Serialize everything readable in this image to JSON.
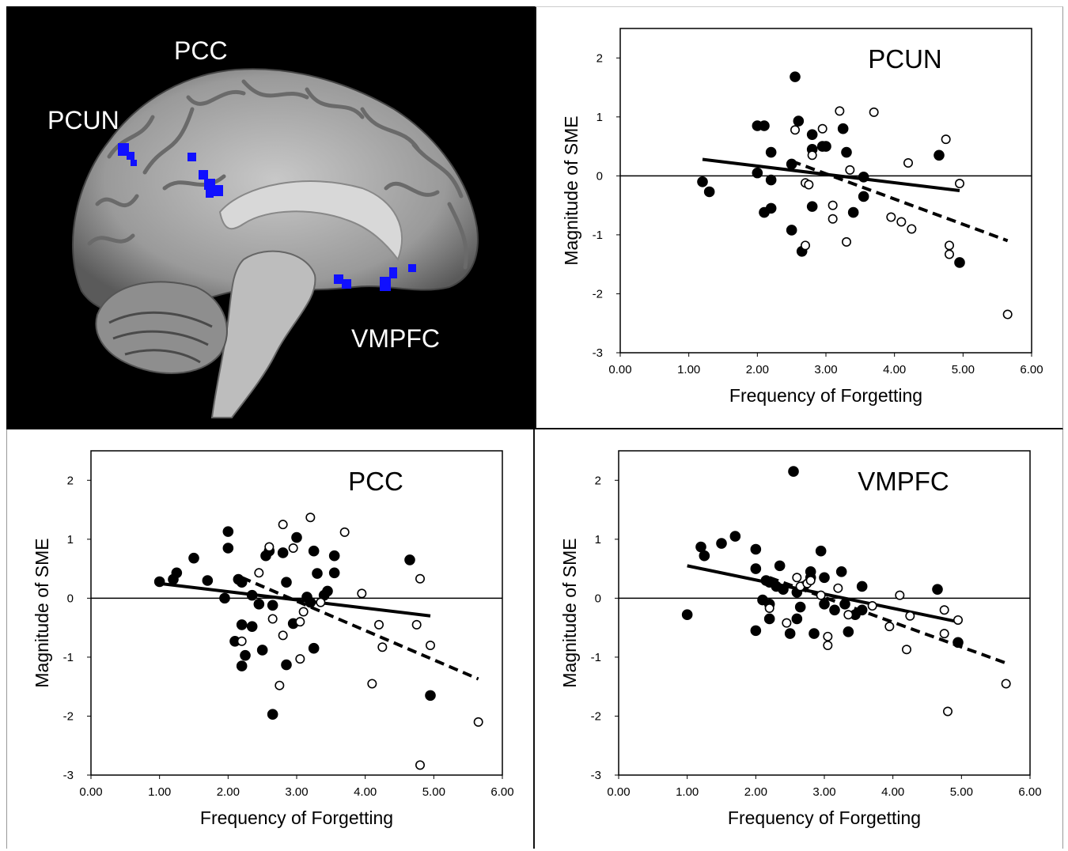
{
  "brain": {
    "labels": {
      "pcc": "PCC",
      "pcun": "PCUN",
      "vmpfc": "VMPFC"
    },
    "colors": {
      "activation": "#1010ff",
      "background": "#000000",
      "label": "#ffffff"
    }
  },
  "chart_data": [
    {
      "type": "scatter",
      "title": "PCUN",
      "xlabel": "Frequency of Forgetting",
      "ylabel": "Magnitude of SME",
      "xlim": [
        0,
        6
      ],
      "ylim": [
        -3,
        2.5
      ],
      "xticks": [
        "0.00",
        "1.00",
        "2.00",
        "3.00",
        "4.00",
        "5.00",
        "6.00"
      ],
      "yticks": [
        "2",
        "1",
        "0",
        "-1",
        "-2",
        "-3"
      ],
      "series": [
        {
          "marker": "filled",
          "points": [
            [
              1.2,
              -0.1
            ],
            [
              1.3,
              -0.27
            ],
            [
              2.0,
              0.85
            ],
            [
              2.1,
              0.85
            ],
            [
              2.2,
              0.4
            ],
            [
              2.2,
              -0.07
            ],
            [
              2.2,
              -0.55
            ],
            [
              2.1,
              -0.62
            ],
            [
              2.0,
              0.05
            ],
            [
              2.5,
              0.2
            ],
            [
              2.55,
              1.68
            ],
            [
              2.6,
              0.93
            ],
            [
              2.8,
              0.7
            ],
            [
              2.8,
              0.45
            ],
            [
              2.95,
              0.5
            ],
            [
              3.0,
              0.5
            ],
            [
              3.25,
              0.8
            ],
            [
              3.3,
              0.4
            ],
            [
              3.55,
              -0.02
            ],
            [
              3.55,
              -0.35
            ],
            [
              3.4,
              -0.62
            ],
            [
              2.8,
              -0.52
            ],
            [
              2.5,
              -0.92
            ],
            [
              2.65,
              -1.28
            ],
            [
              4.65,
              0.35
            ],
            [
              4.95,
              -1.47
            ]
          ]
        },
        {
          "marker": "open",
          "points": [
            [
              2.55,
              0.78
            ],
            [
              2.7,
              -0.12
            ],
            [
              2.75,
              -0.15
            ],
            [
              2.8,
              0.35
            ],
            [
              2.95,
              0.8
            ],
            [
              3.1,
              -0.5
            ],
            [
              3.1,
              -0.73
            ],
            [
              3.2,
              1.1
            ],
            [
              3.3,
              -1.12
            ],
            [
              3.35,
              0.1
            ],
            [
              3.7,
              1.08
            ],
            [
              3.95,
              -0.7
            ],
            [
              4.1,
              -0.78
            ],
            [
              4.2,
              0.22
            ],
            [
              4.25,
              -0.9
            ],
            [
              2.7,
              -1.18
            ],
            [
              4.75,
              0.62
            ],
            [
              4.8,
              -1.18
            ],
            [
              4.8,
              -1.33
            ],
            [
              4.95,
              -0.13
            ],
            [
              5.65,
              -2.35
            ]
          ]
        }
      ],
      "trendlines": [
        {
          "style": "solid",
          "from": [
            1.2,
            0.28
          ],
          "to": [
            4.95,
            -0.25
          ]
        },
        {
          "style": "dashed",
          "from": [
            2.5,
            0.25
          ],
          "to": [
            5.65,
            -1.1
          ]
        }
      ]
    },
    {
      "type": "scatter",
      "title": "PCC",
      "xlabel": "Frequency of Forgetting",
      "ylabel": "Magnitude of SME",
      "xlim": [
        0,
        6
      ],
      "ylim": [
        -3,
        2.5
      ],
      "xticks": [
        "0.00",
        "1.00",
        "2.00",
        "3.00",
        "4.00",
        "5.00",
        "6.00"
      ],
      "yticks": [
        "2",
        "1",
        "0",
        "-1",
        "-2",
        "-3"
      ],
      "series": [
        {
          "marker": "filled",
          "points": [
            [
              1.0,
              0.28
            ],
            [
              1.2,
              0.32
            ],
            [
              1.25,
              0.43
            ],
            [
              1.5,
              0.68
            ],
            [
              1.7,
              0.3
            ],
            [
              2.0,
              1.13
            ],
            [
              2.0,
              0.85
            ],
            [
              2.1,
              -0.73
            ],
            [
              2.15,
              0.32
            ],
            [
              2.2,
              0.27
            ],
            [
              2.2,
              -0.45
            ],
            [
              2.25,
              -0.97
            ],
            [
              2.2,
              -1.15
            ],
            [
              1.95,
              0.0
            ],
            [
              2.35,
              0.05
            ],
            [
              2.35,
              -0.48
            ],
            [
              2.45,
              -0.1
            ],
            [
              2.5,
              -0.88
            ],
            [
              2.55,
              0.72
            ],
            [
              2.6,
              0.8
            ],
            [
              2.65,
              -0.12
            ],
            [
              2.65,
              -1.97
            ],
            [
              2.8,
              0.77
            ],
            [
              2.85,
              0.27
            ],
            [
              2.85,
              -1.13
            ],
            [
              2.95,
              -0.43
            ],
            [
              3.0,
              1.03
            ],
            [
              3.15,
              0.02
            ],
            [
              3.2,
              -0.07
            ],
            [
              3.25,
              0.8
            ],
            [
              3.3,
              0.42
            ],
            [
              3.25,
              -0.85
            ],
            [
              3.4,
              0.05
            ],
            [
              3.45,
              0.12
            ],
            [
              3.55,
              0.72
            ],
            [
              3.55,
              0.43
            ],
            [
              4.65,
              0.65
            ],
            [
              4.95,
              -1.65
            ]
          ]
        },
        {
          "marker": "open",
          "points": [
            [
              2.2,
              -0.73
            ],
            [
              2.45,
              0.43
            ],
            [
              2.6,
              0.87
            ],
            [
              2.65,
              -0.35
            ],
            [
              2.75,
              -1.48
            ],
            [
              2.8,
              -0.63
            ],
            [
              2.8,
              1.25
            ],
            [
              2.95,
              0.85
            ],
            [
              3.05,
              -0.4
            ],
            [
              3.1,
              -0.23
            ],
            [
              3.05,
              -1.03
            ],
            [
              3.2,
              1.37
            ],
            [
              3.35,
              -0.07
            ],
            [
              3.7,
              1.12
            ],
            [
              3.95,
              0.08
            ],
            [
              4.1,
              -1.45
            ],
            [
              4.2,
              -0.45
            ],
            [
              4.25,
              -0.83
            ],
            [
              4.75,
              -0.45
            ],
            [
              4.8,
              0.33
            ],
            [
              4.8,
              -2.83
            ],
            [
              4.95,
              -0.8
            ],
            [
              5.65,
              -2.1
            ]
          ]
        }
      ],
      "trendlines": [
        {
          "style": "solid",
          "from": [
            1.0,
            0.25
          ],
          "to": [
            4.95,
            -0.3
          ]
        },
        {
          "style": "dashed",
          "from": [
            2.2,
            0.35
          ],
          "to": [
            5.65,
            -1.37
          ]
        }
      ]
    },
    {
      "type": "scatter",
      "title": "VMPFC",
      "xlabel": "Frequency of Forgetting",
      "ylabel": "Magnitude of SME",
      "xlim": [
        0,
        6
      ],
      "ylim": [
        -3,
        2.5
      ],
      "xticks": [
        "0.00",
        "1.00",
        "2.00",
        "3.00",
        "4.00",
        "5.00",
        "6.00"
      ],
      "yticks": [
        "2",
        "1",
        "0",
        "-1",
        "-2",
        "-3"
      ],
      "series": [
        {
          "marker": "filled",
          "points": [
            [
              1.0,
              -0.28
            ],
            [
              1.2,
              0.87
            ],
            [
              1.25,
              0.72
            ],
            [
              1.5,
              0.93
            ],
            [
              1.7,
              1.05
            ],
            [
              2.0,
              0.83
            ],
            [
              2.0,
              0.5
            ],
            [
              2.0,
              -0.55
            ],
            [
              2.1,
              -0.03
            ],
            [
              2.15,
              0.3
            ],
            [
              2.2,
              0.27
            ],
            [
              2.2,
              -0.1
            ],
            [
              2.2,
              -0.35
            ],
            [
              2.3,
              0.2
            ],
            [
              2.35,
              0.55
            ],
            [
              2.4,
              0.15
            ],
            [
              2.5,
              -0.6
            ],
            [
              2.55,
              2.15
            ],
            [
              2.6,
              0.1
            ],
            [
              2.6,
              -0.35
            ],
            [
              2.65,
              -0.15
            ],
            [
              2.7,
              0.2
            ],
            [
              2.8,
              0.45
            ],
            [
              2.8,
              0.35
            ],
            [
              2.85,
              -0.6
            ],
            [
              2.95,
              0.8
            ],
            [
              3.0,
              0.35
            ],
            [
              3.0,
              -0.1
            ],
            [
              3.15,
              -0.2
            ],
            [
              3.25,
              0.45
            ],
            [
              3.3,
              -0.1
            ],
            [
              3.35,
              -0.57
            ],
            [
              3.45,
              -0.28
            ],
            [
              3.55,
              0.2
            ],
            [
              3.55,
              -0.2
            ],
            [
              4.65,
              0.15
            ],
            [
              4.95,
              -0.75
            ]
          ]
        },
        {
          "marker": "open",
          "points": [
            [
              2.2,
              -0.17
            ],
            [
              2.45,
              -0.42
            ],
            [
              2.6,
              0.35
            ],
            [
              2.65,
              0.2
            ],
            [
              2.75,
              0.25
            ],
            [
              2.8,
              0.3
            ],
            [
              2.95,
              0.05
            ],
            [
              3.05,
              -0.65
            ],
            [
              3.05,
              -0.8
            ],
            [
              3.2,
              0.17
            ],
            [
              3.35,
              -0.28
            ],
            [
              3.7,
              -0.13
            ],
            [
              3.95,
              -0.48
            ],
            [
              4.1,
              0.05
            ],
            [
              4.2,
              -0.87
            ],
            [
              4.25,
              -0.3
            ],
            [
              4.75,
              -0.2
            ],
            [
              4.75,
              -0.6
            ],
            [
              4.8,
              -1.92
            ],
            [
              4.95,
              -0.37
            ],
            [
              5.65,
              -1.45
            ]
          ]
        }
      ],
      "trendlines": [
        {
          "style": "solid",
          "from": [
            1.0,
            0.55
          ],
          "to": [
            4.95,
            -0.4
          ]
        },
        {
          "style": "dashed",
          "from": [
            2.2,
            0.35
          ],
          "to": [
            5.65,
            -1.1
          ]
        }
      ]
    }
  ]
}
